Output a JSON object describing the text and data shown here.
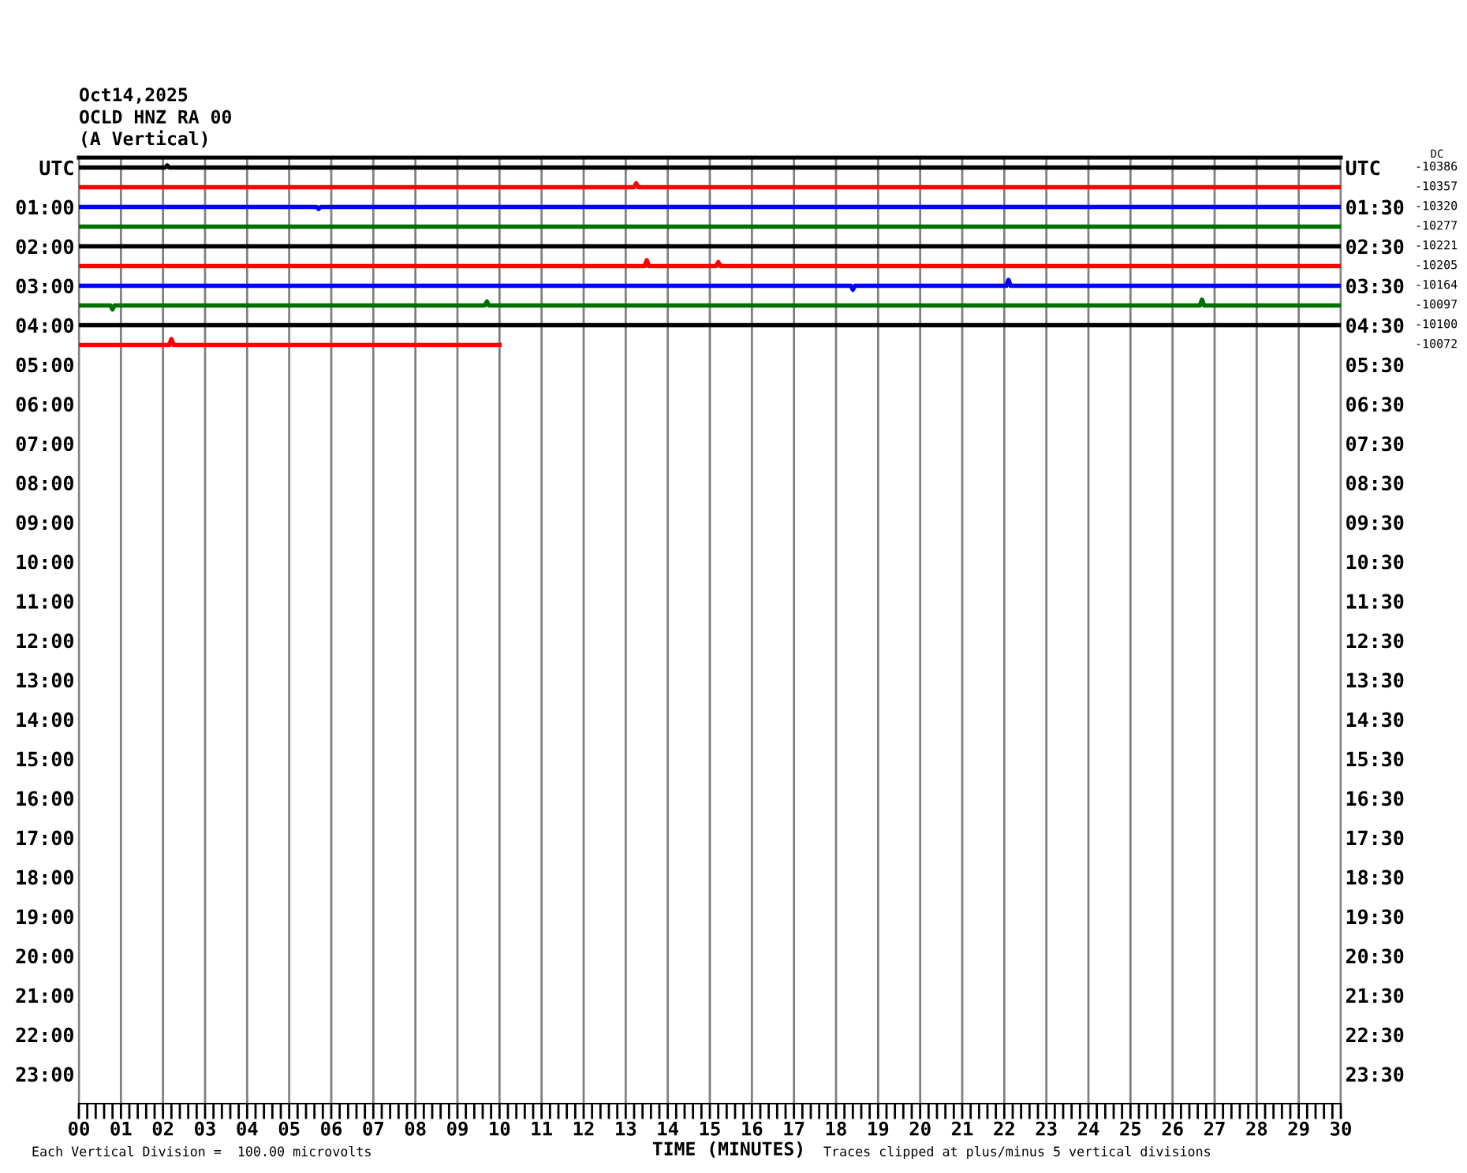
{
  "chart_data": {
    "type": "line",
    "title": "Oct14,2025",
    "subtitle": "OCLD HNZ RA 00\n(A Vertical)",
    "xlabel": "TIME (MINUTES)",
    "annotations": [
      "Each Vertical Division =  100.00 microvolts",
      "Traces clipped at plus/minus 5 vertical divisions",
      "DC",
      "-10386",
      "-10357",
      "-10320",
      "-10277",
      "-10221",
      "-10205",
      "-10164",
      "-10097",
      "-10100",
      "-10072"
    ],
    "xlim": [
      0,
      30
    ],
    "xticks": [
      {
        "value": 0,
        "label": "00"
      },
      {
        "value": 1,
        "label": "01"
      },
      {
        "value": 2,
        "label": "02"
      },
      {
        "value": 3,
        "label": "03"
      },
      {
        "value": 4,
        "label": "04"
      },
      {
        "value": 5,
        "label": "05"
      },
      {
        "value": 6,
        "label": "06"
      },
      {
        "value": 7,
        "label": "07"
      },
      {
        "value": 8,
        "label": "08"
      },
      {
        "value": 9,
        "label": "09"
      },
      {
        "value": 10,
        "label": "10"
      },
      {
        "value": 11,
        "label": "11"
      },
      {
        "value": 12,
        "label": "12"
      },
      {
        "value": 13,
        "label": "13"
      },
      {
        "value": 14,
        "label": "14"
      },
      {
        "value": 15,
        "label": "15"
      },
      {
        "value": 16,
        "label": "16"
      },
      {
        "value": 17,
        "label": "17"
      },
      {
        "value": 18,
        "label": "18"
      },
      {
        "value": 19,
        "label": "19"
      },
      {
        "value": 20,
        "label": "20"
      },
      {
        "value": 21,
        "label": "21"
      },
      {
        "value": 22,
        "label": "22"
      },
      {
        "value": 23,
        "label": "23"
      },
      {
        "value": 24,
        "label": "24"
      },
      {
        "value": 25,
        "label": "25"
      },
      {
        "value": 26,
        "label": "26"
      },
      {
        "value": 27,
        "label": "27"
      },
      {
        "value": 28,
        "label": "28"
      },
      {
        "value": 29,
        "label": "29"
      },
      {
        "value": 30,
        "label": "30"
      },
      {
        "value": 0.2,
        "label": null
      },
      {
        "value": 0.4,
        "label": null
      },
      {
        "value": 0.6,
        "label": null
      },
      {
        "value": 0.8,
        "label": null
      },
      {
        "value": 1.2,
        "label": null
      },
      {
        "value": 1.4,
        "label": null
      },
      {
        "value": 1.6,
        "label": null
      },
      {
        "value": 1.8,
        "label": null
      },
      {
        "value": 2.2,
        "label": null
      },
      {
        "value": 2.4,
        "label": null
      },
      {
        "value": 2.6,
        "label": null
      },
      {
        "value": 2.8,
        "label": null
      },
      {
        "value": 3.2,
        "label": null
      },
      {
        "value": 3.4,
        "label": null
      },
      {
        "value": 3.6,
        "label": null
      },
      {
        "value": 3.8,
        "label": null
      },
      {
        "value": 4.2,
        "label": null
      },
      {
        "value": 4.4,
        "label": null
      },
      {
        "value": 4.6,
        "label": null
      },
      {
        "value": 4.8,
        "label": null
      },
      {
        "value": 5.2,
        "label": null
      },
      {
        "value": 5.4,
        "label": null
      },
      {
        "value": 5.6,
        "label": null
      },
      {
        "value": 5.8,
        "label": null
      },
      {
        "value": 6.2,
        "label": null
      },
      {
        "value": 6.4,
        "label": null
      },
      {
        "value": 6.6,
        "label": null
      },
      {
        "value": 6.8,
        "label": null
      },
      {
        "value": 7.2,
        "label": null
      },
      {
        "value": 7.4,
        "label": null
      },
      {
        "value": 7.6,
        "label": null
      },
      {
        "value": 7.8,
        "label": null
      },
      {
        "value": 8.2,
        "label": null
      },
      {
        "value": 8.4,
        "label": null
      },
      {
        "value": 8.6,
        "label": null
      },
      {
        "value": 8.8,
        "label": null
      },
      {
        "value": 9.2,
        "label": null
      },
      {
        "value": 9.4,
        "label": null
      },
      {
        "value": 9.6,
        "label": null
      },
      {
        "value": 9.8,
        "label": null
      },
      {
        "value": 10.2,
        "label": null
      },
      {
        "value": 10.4,
        "label": null
      },
      {
        "value": 10.6,
        "label": null
      },
      {
        "value": 10.8,
        "label": null
      },
      {
        "value": 11.2,
        "label": null
      },
      {
        "value": 11.4,
        "label": null
      },
      {
        "value": 11.6,
        "label": null
      },
      {
        "value": 11.8,
        "label": null
      },
      {
        "value": 12.2,
        "label": null
      },
      {
        "value": 12.4,
        "label": null
      },
      {
        "value": 12.6,
        "label": null
      },
      {
        "value": 12.8,
        "label": null
      },
      {
        "value": 13.2,
        "label": null
      },
      {
        "value": 13.4,
        "label": null
      },
      {
        "value": 13.6,
        "label": null
      },
      {
        "value": 13.8,
        "label": null
      },
      {
        "value": 14.2,
        "label": null
      },
      {
        "value": 14.4,
        "label": null
      },
      {
        "value": 14.6,
        "label": null
      },
      {
        "value": 14.8,
        "label": null
      },
      {
        "value": 15.2,
        "label": null
      },
      {
        "value": 15.4,
        "label": null
      },
      {
        "value": 15.6,
        "label": null
      },
      {
        "value": 15.8,
        "label": null
      },
      {
        "value": 16.2,
        "label": null
      },
      {
        "value": 16.4,
        "label": null
      },
      {
        "value": 16.6,
        "label": null
      },
      {
        "value": 16.8,
        "label": null
      },
      {
        "value": 17.2,
        "label": null
      },
      {
        "value": 17.4,
        "label": null
      },
      {
        "value": 17.6,
        "label": null
      },
      {
        "value": 17.8,
        "label": null
      },
      {
        "value": 18.2,
        "label": null
      },
      {
        "value": 18.4,
        "label": null
      },
      {
        "value": 18.6,
        "label": null
      },
      {
        "value": 18.8,
        "label": null
      },
      {
        "value": 19.2,
        "label": null
      },
      {
        "value": 19.4,
        "label": null
      },
      {
        "value": 19.6,
        "label": null
      },
      {
        "value": 19.8,
        "label": null
      },
      {
        "value": 20.2,
        "label": null
      },
      {
        "value": 20.4,
        "label": null
      },
      {
        "value": 20.6,
        "label": null
      },
      {
        "value": 20.8,
        "label": null
      },
      {
        "value": 21.2,
        "label": null
      },
      {
        "value": 21.4,
        "label": null
      },
      {
        "value": 21.6,
        "label": null
      },
      {
        "value": 21.8,
        "label": null
      },
      {
        "value": 22.2,
        "label": null
      },
      {
        "value": 22.4,
        "label": null
      },
      {
        "value": 22.6,
        "label": null
      },
      {
        "value": 22.8,
        "label": null
      },
      {
        "value": 23.2,
        "label": null
      },
      {
        "value": 23.4,
        "label": null
      },
      {
        "value": 23.6,
        "label": null
      },
      {
        "value": 23.8,
        "label": null
      },
      {
        "value": 24.2,
        "label": null
      },
      {
        "value": 24.4,
        "label": null
      },
      {
        "value": 24.6,
        "label": null
      },
      {
        "value": 24.8,
        "label": null
      },
      {
        "value": 25.2,
        "label": null
      },
      {
        "value": 25.4,
        "label": null
      },
      {
        "value": 25.6,
        "label": null
      },
      {
        "value": 25.8,
        "label": null
      },
      {
        "value": 26.2,
        "label": null
      },
      {
        "value": 26.4,
        "label": null
      },
      {
        "value": 26.6,
        "label": null
      },
      {
        "value": 26.8,
        "label": null
      },
      {
        "value": 27.2,
        "label": null
      },
      {
        "value": 27.4,
        "label": null
      },
      {
        "value": 27.6,
        "label": null
      },
      {
        "value": 27.8,
        "label": null
      },
      {
        "value": 28.2,
        "label": null
      },
      {
        "value": 28.4,
        "label": null
      },
      {
        "value": 28.6,
        "label": null
      },
      {
        "value": 28.8,
        "label": null
      },
      {
        "value": 29.2,
        "label": null
      },
      {
        "value": 29.4,
        "label": null
      },
      {
        "value": 29.6,
        "label": null
      },
      {
        "value": 29.8,
        "label": null
      }
    ],
    "ylim": [
      23.75,
      -0.25
    ],
    "yticks": [
      {
        "value": 0,
        "label": "UTC"
      },
      {
        "value": 1,
        "label": "01:00"
      },
      {
        "value": 2,
        "label": "02:00"
      },
      {
        "value": 3,
        "label": "03:00"
      },
      {
        "value": 4,
        "label": "04:00"
      },
      {
        "value": 5,
        "label": "05:00"
      },
      {
        "value": 6,
        "label": "06:00"
      },
      {
        "value": 7,
        "label": "07:00"
      },
      {
        "value": 8,
        "label": "08:00"
      },
      {
        "value": 9,
        "label": "09:00"
      },
      {
        "value": 10,
        "label": "10:00"
      },
      {
        "value": 11,
        "label": "11:00"
      },
      {
        "value": 12,
        "label": "12:00"
      },
      {
        "value": 13,
        "label": "13:00"
      },
      {
        "value": 14,
        "label": "14:00"
      },
      {
        "value": 15,
        "label": "15:00"
      },
      {
        "value": 16,
        "label": "16:00"
      },
      {
        "value": 17,
        "label": "17:00"
      },
      {
        "value": 18,
        "label": "18:00"
      },
      {
        "value": 19,
        "label": "19:00"
      },
      {
        "value": 20,
        "label": "20:00"
      },
      {
        "value": 21,
        "label": "21:00"
      },
      {
        "value": 22,
        "label": "22:00"
      },
      {
        "value": 23,
        "label": "23:00"
      }
    ],
    "y2lim": [
      24.25,
      0.25
    ],
    "y2ticks": [
      {
        "value": 0.5,
        "label": "UTC"
      },
      {
        "value": 1.5,
        "label": "01:30"
      },
      {
        "value": 2.5,
        "label": "02:30"
      },
      {
        "value": 3.5,
        "label": "03:30"
      },
      {
        "value": 4.5,
        "label": "04:30"
      },
      {
        "value": 5.5,
        "label": "05:30"
      },
      {
        "value": 6.5,
        "label": "06:30"
      },
      {
        "value": 7.5,
        "label": "07:30"
      },
      {
        "value": 8.5,
        "label": "08:30"
      },
      {
        "value": 9.5,
        "label": "09:30"
      },
      {
        "value": 10.5,
        "label": "10:30"
      },
      {
        "value": 11.5,
        "label": "11:30"
      },
      {
        "value": 12.5,
        "label": "12:30"
      },
      {
        "value": 13.5,
        "label": "13:30"
      },
      {
        "value": 14.5,
        "label": "14:30"
      },
      {
        "value": 15.5,
        "label": "15:30"
      },
      {
        "value": 16.5,
        "label": "16:30"
      },
      {
        "value": 17.5,
        "label": "17:30"
      },
      {
        "value": 18.5,
        "label": "18:30"
      },
      {
        "value": 19.5,
        "label": "19:30"
      },
      {
        "value": 20.5,
        "label": "20:30"
      },
      {
        "value": 21.5,
        "label": "21:30"
      },
      {
        "value": 22.5,
        "label": "22:30"
      },
      {
        "value": 23.5,
        "label": "23:30"
      }
    ],
    "grid": "x",
    "series": [
      {
        "color": "#000000",
        "x": [
          0,
          2.05,
          2.1,
          2.15,
          30
        ],
        "values": [
          0,
          0,
          -0.05,
          0,
          0
        ]
      },
      {
        "color": "#ff0000",
        "x": [
          0,
          13.2,
          13.25,
          13.3,
          30
        ],
        "values": [
          0.5,
          0.5,
          0.4,
          0.5,
          0.5
        ]
      },
      {
        "color": "#0000ff",
        "x": [
          0,
          5.65,
          5.7,
          5.75,
          30
        ],
        "values": [
          1,
          1,
          1.05,
          1,
          1
        ]
      },
      {
        "color": "#007000",
        "x": [
          0,
          30
        ],
        "values": [
          1.5,
          1.5
        ]
      },
      {
        "color": "#000000",
        "x": [
          0,
          30
        ],
        "values": [
          2,
          2
        ]
      },
      {
        "color": "#ff0000",
        "x": [
          0,
          13.45,
          13.5,
          13.55,
          15.15,
          15.2,
          15.25,
          30
        ],
        "values": [
          2.5,
          2.5,
          2.35,
          2.5,
          2.5,
          2.4,
          2.5,
          2.5
        ]
      },
      {
        "color": "#0000ff",
        "x": [
          0,
          18.35,
          18.4,
          18.45,
          22.05,
          22.1,
          22.15,
          30
        ],
        "values": [
          3,
          3,
          3.1,
          3,
          3,
          2.85,
          3,
          3
        ]
      },
      {
        "color": "#007000",
        "x": [
          0,
          0.75,
          0.8,
          0.85,
          9.65,
          9.7,
          9.75,
          26.65,
          26.7,
          26.75,
          30
        ],
        "values": [
          3.5,
          3.5,
          3.6,
          3.5,
          3.5,
          3.4,
          3.5,
          3.5,
          3.35,
          3.5,
          3.5
        ]
      },
      {
        "color": "#000000",
        "x": [
          0,
          30
        ],
        "values": [
          4,
          4
        ]
      },
      {
        "color": "#ff0000",
        "x": [
          0,
          2.15,
          2.2,
          2.25,
          10
        ],
        "values": [
          4.5,
          4.5,
          4.35,
          4.5,
          4.5
        ]
      }
    ]
  }
}
